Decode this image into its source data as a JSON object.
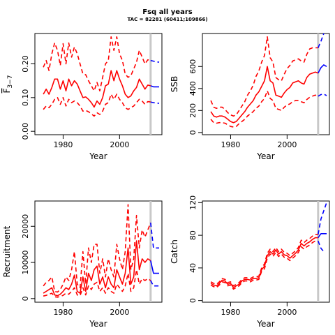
{
  "title": "Fsq all years",
  "subtitle": "TAC = 82281 (60411;109866)",
  "colors": {
    "historic": "#ff0000",
    "forecast": "#0000ff",
    "marker": "#c8c8c8",
    "axis": "#000000"
  },
  "chart_data": [
    {
      "type": "line",
      "id": "fbar",
      "title": "",
      "xlabel": "Year",
      "ylabel": "F3-7",
      "ylabel_main": "F",
      "ylabel_sub": "3−7",
      "xlim": [
        1970,
        2015
      ],
      "ylim": [
        -0.01,
        0.29
      ],
      "xticks": [
        1980,
        2000
      ],
      "yticks": [
        0.0,
        0.1,
        0.2
      ],
      "ytick_labels": [
        "0.00",
        "0.10",
        "0.20"
      ],
      "marker_x": 2011,
      "x": [
        1973,
        1974,
        1975,
        1976,
        1977,
        1978,
        1979,
        1980,
        1981,
        1982,
        1983,
        1984,
        1985,
        1986,
        1987,
        1988,
        1989,
        1990,
        1991,
        1992,
        1993,
        1994,
        1995,
        1996,
        1997,
        1998,
        1999,
        2000,
        2001,
        2002,
        2003,
        2004,
        2005,
        2006,
        2007,
        2008,
        2009,
        2010,
        2011
      ],
      "series": [
        {
          "role": "estimate",
          "style": "solid",
          "color": "#ff0000",
          "values": [
            0.11,
            0.125,
            0.11,
            0.13,
            0.155,
            0.155,
            0.125,
            0.15,
            0.12,
            0.155,
            0.135,
            0.15,
            0.14,
            0.12,
            0.1,
            0.102,
            0.095,
            0.085,
            0.072,
            0.09,
            0.08,
            0.1,
            0.135,
            0.14,
            0.18,
            0.15,
            0.18,
            0.155,
            0.135,
            0.11,
            0.1,
            0.105,
            0.12,
            0.13,
            0.155,
            0.14,
            0.125,
            0.137,
            0.135
          ]
        },
        {
          "role": "upper",
          "style": "dashed",
          "color": "#ff0000",
          "values": [
            0.19,
            0.21,
            0.18,
            0.23,
            0.262,
            0.24,
            0.195,
            0.26,
            0.2,
            0.262,
            0.22,
            0.25,
            0.23,
            0.2,
            0.17,
            0.168,
            0.15,
            0.135,
            0.12,
            0.145,
            0.12,
            0.16,
            0.2,
            0.21,
            0.28,
            0.24,
            0.28,
            0.23,
            0.21,
            0.17,
            0.16,
            0.165,
            0.185,
            0.205,
            0.24,
            0.22,
            0.2,
            0.212,
            0.21
          ]
        },
        {
          "role": "lower",
          "style": "dashed",
          "color": "#ff0000",
          "values": [
            0.065,
            0.075,
            0.07,
            0.08,
            0.095,
            0.1,
            0.08,
            0.1,
            0.075,
            0.095,
            0.085,
            0.09,
            0.085,
            0.075,
            0.06,
            0.062,
            0.058,
            0.052,
            0.045,
            0.055,
            0.05,
            0.06,
            0.08,
            0.085,
            0.11,
            0.095,
            0.11,
            0.095,
            0.085,
            0.07,
            0.065,
            0.07,
            0.075,
            0.085,
            0.095,
            0.09,
            0.08,
            0.088,
            0.087
          ]
        }
      ],
      "forecast": [
        {
          "role": "estimate",
          "style": "solid",
          "color": "#0000ff",
          "x": [
            2011,
            2012,
            2013,
            2014
          ],
          "values": [
            0.135,
            0.132,
            0.132,
            0.132
          ]
        },
        {
          "role": "upper",
          "style": "dashed",
          "color": "#0000ff",
          "x": [
            2011,
            2012,
            2013,
            2014
          ],
          "values": [
            0.21,
            0.208,
            0.206,
            0.205
          ]
        },
        {
          "role": "lower",
          "style": "dashed",
          "color": "#0000ff",
          "x": [
            2011,
            2012,
            2013,
            2014
          ],
          "values": [
            0.087,
            0.085,
            0.084,
            0.083
          ]
        }
      ]
    },
    {
      "type": "line",
      "id": "ssb",
      "title": "",
      "xlabel": "Year",
      "ylabel": "SSB",
      "xlim": [
        1970,
        2015
      ],
      "ylim": [
        -20,
        900
      ],
      "xticks": [
        1980,
        2000
      ],
      "yticks": [
        0,
        200,
        400,
        600
      ],
      "ytick_labels": [
        "0",
        "200",
        "400",
        "600"
      ],
      "marker_x": 2011,
      "x": [
        1973,
        1974,
        1975,
        1976,
        1977,
        1978,
        1979,
        1980,
        1981,
        1982,
        1983,
        1984,
        1985,
        1986,
        1987,
        1988,
        1989,
        1990,
        1991,
        1992,
        1993,
        1994,
        1995,
        1996,
        1997,
        1998,
        1999,
        2000,
        2001,
        2002,
        2003,
        2004,
        2005,
        2006,
        2007,
        2008,
        2009,
        2010,
        2011
      ],
      "series": [
        {
          "role": "estimate",
          "style": "solid",
          "color": "#ff0000",
          "values": [
            190,
            150,
            140,
            150,
            150,
            140,
            120,
            100,
            90,
            100,
            130,
            160,
            190,
            230,
            260,
            290,
            340,
            370,
            420,
            470,
            600,
            470,
            450,
            340,
            330,
            320,
            360,
            390,
            410,
            450,
            460,
            470,
            450,
            440,
            500,
            530,
            540,
            550,
            540
          ]
        },
        {
          "role": "upper",
          "style": "dashed",
          "color": "#ff0000",
          "values": [
            290,
            230,
            220,
            230,
            230,
            210,
            180,
            160,
            150,
            160,
            200,
            240,
            280,
            340,
            380,
            430,
            510,
            560,
            640,
            700,
            870,
            680,
            640,
            500,
            480,
            470,
            530,
            580,
            610,
            650,
            660,
            670,
            650,
            640,
            710,
            760,
            770,
            770,
            770
          ]
        },
        {
          "role": "lower",
          "style": "dashed",
          "color": "#ff0000",
          "values": [
            120,
            90,
            85,
            90,
            90,
            85,
            70,
            55,
            50,
            55,
            80,
            100,
            120,
            150,
            170,
            190,
            220,
            240,
            280,
            310,
            380,
            310,
            290,
            220,
            210,
            200,
            230,
            250,
            260,
            280,
            290,
            290,
            280,
            270,
            300,
            320,
            330,
            340,
            330
          ]
        }
      ],
      "forecast": [
        {
          "role": "estimate",
          "style": "solid",
          "color": "#0000ff",
          "x": [
            2011,
            2012,
            2013,
            2014
          ],
          "values": [
            540,
            590,
            615,
            600
          ]
        },
        {
          "role": "upper",
          "style": "dashed",
          "color": "#0000ff",
          "x": [
            2011,
            2012,
            2013
          ],
          "values": [
            770,
            830,
            900
          ]
        },
        {
          "role": "lower",
          "style": "dashed",
          "color": "#0000ff",
          "x": [
            2011,
            2012,
            2013,
            2014
          ],
          "values": [
            330,
            345,
            350,
            335
          ]
        }
      ]
    },
    {
      "type": "line",
      "id": "recruitment",
      "title": "",
      "xlabel": "Year",
      "ylabel": "Recruitment",
      "xlim": [
        1970,
        2015
      ],
      "ylim": [
        -1000,
        27000
      ],
      "xticks": [
        1980,
        2000
      ],
      "yticks": [
        0,
        10000,
        20000
      ],
      "ytick_labels": [
        "0",
        "10000",
        "20000"
      ],
      "marker_x": 2011,
      "x": [
        1973,
        1974,
        1975,
        1976,
        1977,
        1978,
        1979,
        1980,
        1981,
        1982,
        1983,
        1984,
        1985,
        1986,
        1987,
        1988,
        1989,
        1990,
        1991,
        1992,
        1993,
        1994,
        1995,
        1996,
        1997,
        1998,
        1999,
        2000,
        2001,
        2002,
        2003,
        2004,
        2005,
        2006,
        2007,
        2008,
        2009,
        2010,
        2011
      ],
      "series": [
        {
          "role": "estimate",
          "style": "solid",
          "color": "#ff0000",
          "values": [
            1500,
            2000,
            2500,
            3000,
            1000,
            800,
            1200,
            2000,
            3000,
            2500,
            4000,
            6500,
            2000,
            1500,
            6000,
            2000,
            7000,
            5000,
            8000,
            9000,
            4000,
            6000,
            3000,
            6000,
            4000,
            3000,
            8000,
            6000,
            4000,
            7000,
            14000,
            4000,
            6000,
            16000,
            8000,
            11000,
            10000,
            11000,
            10500
          ]
        },
        {
          "role": "upper",
          "style": "dashed",
          "color": "#ff0000",
          "values": [
            3500,
            4500,
            5000,
            6000,
            2000,
            1800,
            2500,
            4000,
            6000,
            5000,
            8000,
            13000,
            4000,
            3000,
            13000,
            4000,
            14000,
            10000,
            15000,
            15000,
            7000,
            11000,
            6000,
            11000,
            8000,
            6000,
            15000,
            11000,
            8000,
            13000,
            26000,
            8000,
            11000,
            23000,
            14000,
            19000,
            17000,
            19000,
            21000
          ]
        },
        {
          "role": "lower",
          "style": "dashed",
          "color": "#ff0000",
          "values": [
            700,
            900,
            1200,
            1500,
            500,
            400,
            600,
            900,
            1500,
            1200,
            2000,
            3000,
            1000,
            800,
            3000,
            1000,
            3500,
            2500,
            4000,
            4500,
            2000,
            3000,
            1500,
            3000,
            2000,
            1500,
            4000,
            3000,
            2000,
            3500,
            7000,
            2000,
            3000,
            8000,
            4000,
            5500,
            5000,
            5500,
            5000
          ]
        }
      ],
      "forecast": [
        {
          "role": "estimate",
          "style": "solid",
          "color": "#0000ff",
          "x": [
            2011,
            2012,
            2013,
            2014
          ],
          "values": [
            10500,
            7000,
            7000,
            7000
          ]
        },
        {
          "role": "upper",
          "style": "dashed",
          "color": "#0000ff",
          "x": [
            2011,
            2012,
            2013,
            2014
          ],
          "values": [
            21000,
            14000,
            14000,
            14000
          ]
        },
        {
          "role": "lower",
          "style": "dashed",
          "color": "#0000ff",
          "x": [
            2011,
            2012,
            2013,
            2014
          ],
          "values": [
            5000,
            3500,
            3500,
            3500
          ]
        }
      ]
    },
    {
      "type": "line",
      "id": "catch",
      "title": "",
      "xlabel": "Year",
      "ylabel": "Catch",
      "xlim": [
        1970,
        2015
      ],
      "ylim": [
        -2,
        122
      ],
      "xticks": [
        1980,
        2000
      ],
      "yticks": [
        0,
        40,
        80,
        120
      ],
      "ytick_labels": [
        "0",
        "40",
        "80",
        "120"
      ],
      "marker_x": 2011,
      "x": [
        1973,
        1974,
        1975,
        1976,
        1977,
        1978,
        1979,
        1980,
        1981,
        1982,
        1983,
        1984,
        1985,
        1986,
        1987,
        1988,
        1989,
        1990,
        1991,
        1992,
        1993,
        1994,
        1995,
        1996,
        1997,
        1998,
        1999,
        2000,
        2001,
        2002,
        2003,
        2004,
        2005,
        2006,
        2007,
        2008,
        2009,
        2010,
        2011
      ],
      "series": [
        {
          "role": "estimate",
          "style": "solid",
          "color": "#ff0000",
          "values": [
            21,
            19,
            18,
            21,
            25,
            24,
            20,
            21,
            16,
            18,
            20,
            24,
            26,
            26,
            25,
            27,
            27,
            28,
            38,
            42,
            55,
            60,
            57,
            62,
            57,
            60,
            56,
            55,
            52,
            55,
            58,
            62,
            70,
            67,
            70,
            72,
            75,
            77,
            77
          ]
        },
        {
          "role": "upper",
          "style": "dashed",
          "color": "#ff0000",
          "values": [
            23,
            21,
            20,
            23,
            27,
            26,
            22,
            23,
            18,
            20,
            22,
            26,
            28,
            28,
            27,
            29,
            29,
            30,
            40,
            45,
            58,
            63,
            60,
            65,
            60,
            63,
            59,
            58,
            55,
            58,
            61,
            65,
            74,
            71,
            74,
            76,
            79,
            81,
            81
          ]
        },
        {
          "role": "lower",
          "style": "dashed",
          "color": "#ff0000",
          "values": [
            19,
            17,
            16,
            19,
            23,
            22,
            18,
            19,
            14,
            16,
            18,
            22,
            24,
            24,
            23,
            25,
            25,
            26,
            36,
            39,
            52,
            57,
            54,
            59,
            54,
            57,
            53,
            52,
            49,
            52,
            55,
            59,
            66,
            63,
            66,
            68,
            71,
            73,
            73
          ]
        }
      ],
      "forecast": [
        {
          "role": "estimate",
          "style": "solid",
          "color": "#0000ff",
          "x": [
            2011,
            2012,
            2013,
            2014
          ],
          "values": [
            77,
            82,
            82,
            82
          ]
        },
        {
          "role": "upper",
          "style": "dashed",
          "color": "#0000ff",
          "x": [
            2011,
            2012,
            2013,
            2014
          ],
          "values": [
            81,
            100,
            110,
            120
          ]
        },
        {
          "role": "lower",
          "style": "dashed",
          "color": "#0000ff",
          "x": [
            2011,
            2012,
            2013
          ],
          "values": [
            73,
            64,
            60
          ]
        }
      ]
    }
  ]
}
